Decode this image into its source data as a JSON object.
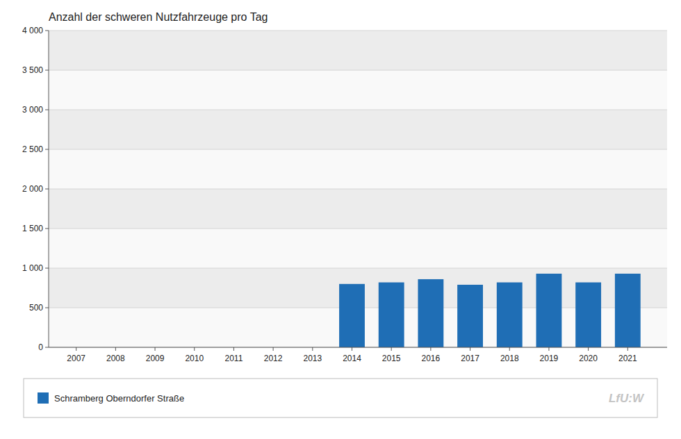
{
  "chart_data": {
    "type": "bar",
    "title": "Anzahl  der schweren Nutzfahrzeuge  pro Tag",
    "x": [
      2007,
      2008,
      2009,
      2010,
      2011,
      2012,
      2013,
      2014,
      2015,
      2016,
      2017,
      2018,
      2019,
      2020,
      2021
    ],
    "series": [
      {
        "name": "Schramberg Oberndorfer Straße",
        "color": "#1F6EB5",
        "values": [
          0,
          0,
          0,
          0,
          0,
          0,
          0,
          800,
          820,
          860,
          790,
          820,
          930,
          820,
          930
        ]
      }
    ],
    "xlim": [
      2006.3,
      2022.0
    ],
    "xticks": [
      2007,
      2008,
      2009,
      2010,
      2011,
      2012,
      2013,
      2014,
      2015,
      2016,
      2017,
      2018,
      2019,
      2020,
      2021
    ],
    "ylim": [
      0,
      4000
    ],
    "yticks": [
      0,
      500,
      {
        "value": 1000,
        "label": "1 000"
      },
      {
        "value": 1500,
        "label": "1 500"
      },
      {
        "value": 2000,
        "label": "2 000"
      },
      {
        "value": 2500,
        "label": "2 500"
      },
      {
        "value": 3000,
        "label": "3 000"
      },
      {
        "value": 3500,
        "label": "3 500"
      },
      {
        "value": 4000,
        "label": "4 000"
      }
    ],
    "grid": true,
    "legend": "bottom",
    "annotations": [
      {
        "text": "LfU:W"
      }
    ]
  }
}
